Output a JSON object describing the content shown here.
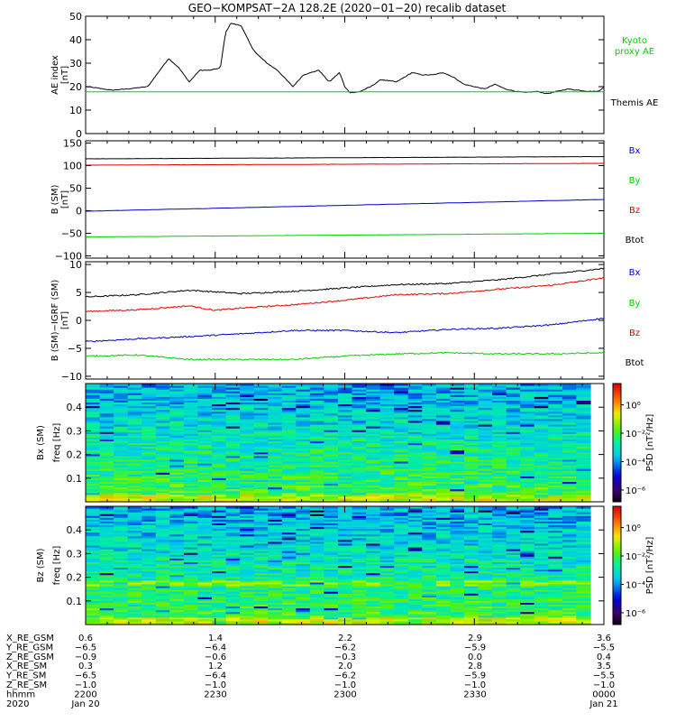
{
  "title": "GEO−KOMPSAT−2A 128.2E (2020−01−20) recalib dataset",
  "colors": {
    "black": "#000000",
    "red": "#e00000",
    "blue": "#0000d0",
    "green": "#00d000",
    "kyoto": "#00d000"
  },
  "chart_data": [
    {
      "type": "line",
      "panel": "ae",
      "ylabel": [
        "AE index",
        "[nT]"
      ],
      "ylim": [
        0,
        50
      ],
      "yticks": [
        "0",
        "10",
        "20",
        "30",
        "40",
        "50"
      ],
      "legend": [
        {
          "label_lines": [
            "Kyoto",
            "proxy AE"
          ],
          "color": "#00d000"
        },
        {
          "label_lines": [
            "Themis AE"
          ],
          "color": "#000000"
        }
      ],
      "series": [
        {
          "name": "Themis AE",
          "color": "#000000",
          "x": [
            0,
            0.02,
            0.05,
            0.08,
            0.12,
            0.16,
            0.18,
            0.2,
            0.22,
            0.24,
            0.26,
            0.27,
            0.28,
            0.3,
            0.32,
            0.33,
            0.34,
            0.35,
            0.37,
            0.4,
            0.42,
            0.45,
            0.47,
            0.49,
            0.5,
            0.51,
            0.52,
            0.53,
            0.55,
            0.57,
            0.6,
            0.63,
            0.65,
            0.67,
            0.69,
            0.71,
            0.73,
            0.75,
            0.77,
            0.79,
            0.81,
            0.83,
            0.85,
            0.87,
            0.89,
            0.91,
            0.93,
            0.95,
            0.97,
            0.99,
            1.0
          ],
          "y": [
            20,
            19.5,
            18.5,
            19,
            20,
            32,
            28,
            22,
            27,
            27,
            28,
            43,
            47,
            46,
            37,
            34,
            32,
            30,
            27,
            20,
            25,
            27,
            22,
            26,
            20,
            17.5,
            17.5,
            18,
            20,
            23,
            22,
            26,
            25,
            25,
            26,
            24,
            21,
            20,
            19,
            21,
            19,
            18,
            17.5,
            18,
            17,
            18,
            19,
            18.5,
            18,
            18,
            20
          ]
        },
        {
          "name": "Kyoto proxy AE",
          "color": "#00d000",
          "x": [
            0,
            1
          ],
          "y": [
            17.8,
            17.8
          ]
        }
      ]
    },
    {
      "type": "line",
      "panel": "b_sm",
      "ylabel": [
        "B (SM)",
        "[nT]"
      ],
      "ylim": [
        -105,
        155
      ],
      "yticks": [
        "−100",
        "−50",
        "0",
        "50",
        "100",
        "150"
      ],
      "legend": [
        {
          "label_lines": [
            "Bx"
          ],
          "color": "#0000d0"
        },
        {
          "label_lines": [
            "By"
          ],
          "color": "#00d000"
        },
        {
          "label_lines": [
            "Bz"
          ],
          "color": "#e00000"
        },
        {
          "label_lines": [
            "Btot"
          ],
          "color": "#000000"
        }
      ],
      "series": [
        {
          "name": "Btot",
          "color": "#000000",
          "x": [
            0,
            1
          ],
          "y": [
            115,
            120
          ]
        },
        {
          "name": "Bz",
          "color": "#e00000",
          "x": [
            0,
            1
          ],
          "y": [
            101,
            105
          ]
        },
        {
          "name": "Bx",
          "color": "#0000d0",
          "x": [
            0,
            1
          ],
          "y": [
            -1,
            25
          ]
        },
        {
          "name": "By",
          "color": "#00d000",
          "x": [
            0,
            1
          ],
          "y": [
            -58,
            -50
          ]
        }
      ]
    },
    {
      "type": "line",
      "panel": "b_minus_igrf",
      "ylabel": [
        "B (SM)−IGRF (SM)",
        "[nT]"
      ],
      "ylim": [
        -10.5,
        10.5
      ],
      "yticks": [
        "−10",
        "−5",
        "0",
        "5",
        "10"
      ],
      "legend": [
        {
          "label_lines": [
            "Bx"
          ],
          "color": "#0000d0"
        },
        {
          "label_lines": [
            "By"
          ],
          "color": "#00d000"
        },
        {
          "label_lines": [
            "Bz"
          ],
          "color": "#e00000"
        },
        {
          "label_lines": [
            "Btot"
          ],
          "color": "#000000"
        }
      ],
      "series": [
        {
          "name": "Btot",
          "color": "#000000",
          "x": [
            0,
            0.1,
            0.2,
            0.3,
            0.4,
            0.5,
            0.6,
            0.7,
            0.8,
            0.9,
            1.0
          ],
          "y": [
            4.2,
            4.6,
            5.4,
            4.8,
            5.2,
            5.8,
            6.4,
            6.6,
            7.3,
            8.3,
            9.3
          ]
        },
        {
          "name": "Bz",
          "color": "#e00000",
          "x": [
            0,
            0.1,
            0.2,
            0.25,
            0.3,
            0.4,
            0.5,
            0.6,
            0.7,
            0.8,
            0.9,
            1.0
          ],
          "y": [
            1.6,
            1.9,
            2.6,
            1.8,
            2.2,
            2.8,
            3.6,
            4.6,
            4.8,
            5.6,
            6.3,
            7.6
          ]
        },
        {
          "name": "Bx",
          "color": "#0000d0",
          "x": [
            0,
            0.1,
            0.2,
            0.3,
            0.4,
            0.5,
            0.6,
            0.7,
            0.8,
            0.9,
            1.0
          ],
          "y": [
            -3.8,
            -3.3,
            -2.9,
            -2.4,
            -1.8,
            -1.8,
            -2.2,
            -1.6,
            -1.4,
            -0.8,
            0.4
          ]
        },
        {
          "name": "By",
          "color": "#00d000",
          "x": [
            0,
            0.1,
            0.2,
            0.3,
            0.4,
            0.5,
            0.6,
            0.7,
            0.8,
            0.9,
            1.0
          ],
          "y": [
            -6.4,
            -6.2,
            -7.0,
            -7.0,
            -7.0,
            -6.4,
            -6.0,
            -5.8,
            -6.0,
            -6.0,
            -5.8
          ]
        }
      ]
    },
    {
      "type": "heatmap",
      "panel": "bx_spec",
      "ylabel": [
        "Bx (SM)",
        "freq [Hz]"
      ],
      "ylim": [
        0,
        0.5
      ],
      "yticks": [
        "0.1",
        "0.2",
        "0.3",
        "0.4"
      ],
      "colorbar_label": "PSD [nT²/Hz]",
      "colorbar_ticks": [
        "10⁰",
        "10⁻²",
        "10⁻⁴",
        "10⁻⁶"
      ]
    },
    {
      "type": "heatmap",
      "panel": "bz_spec",
      "ylabel": [
        "Bz (SM)",
        "freq [Hz]"
      ],
      "ylim": [
        0,
        0.5
      ],
      "yticks": [
        "0.1",
        "0.2",
        "0.3",
        "0.4"
      ],
      "colorbar_label": "PSD [nT²/Hz]",
      "colorbar_ticks": [
        "10⁰",
        "10⁻²",
        "10⁻⁴",
        "10⁻⁶"
      ]
    }
  ],
  "xaxis": {
    "row_labels": [
      "X_RE_GSM",
      "Y_RE_GSM",
      "Z_RE_GSM",
      "X_RE_SM",
      "Y_RE_SM",
      "Z_RE_SM",
      "hhmm",
      "2020"
    ],
    "columns": [
      [
        "0.6",
        "−6.5",
        "−0.9",
        "0.3",
        "−6.5",
        "−1.0",
        "2200",
        "Jan 20"
      ],
      [
        "1.4",
        "−6.4",
        "−0.6",
        "1.2",
        "−6.4",
        "−1.0",
        "2230",
        ""
      ],
      [
        "2.2",
        "−6.2",
        "−0.3",
        "2.0",
        "−6.2",
        "−1.0",
        "2300",
        ""
      ],
      [
        "2.9",
        "−5.9",
        "0.0",
        "2.8",
        "−5.9",
        "−1.0",
        "2330",
        ""
      ],
      [
        "3.6",
        "−5.5",
        "0.4",
        "3.5",
        "−5.5",
        "−1.0",
        "0000",
        "Jan 21"
      ]
    ]
  }
}
